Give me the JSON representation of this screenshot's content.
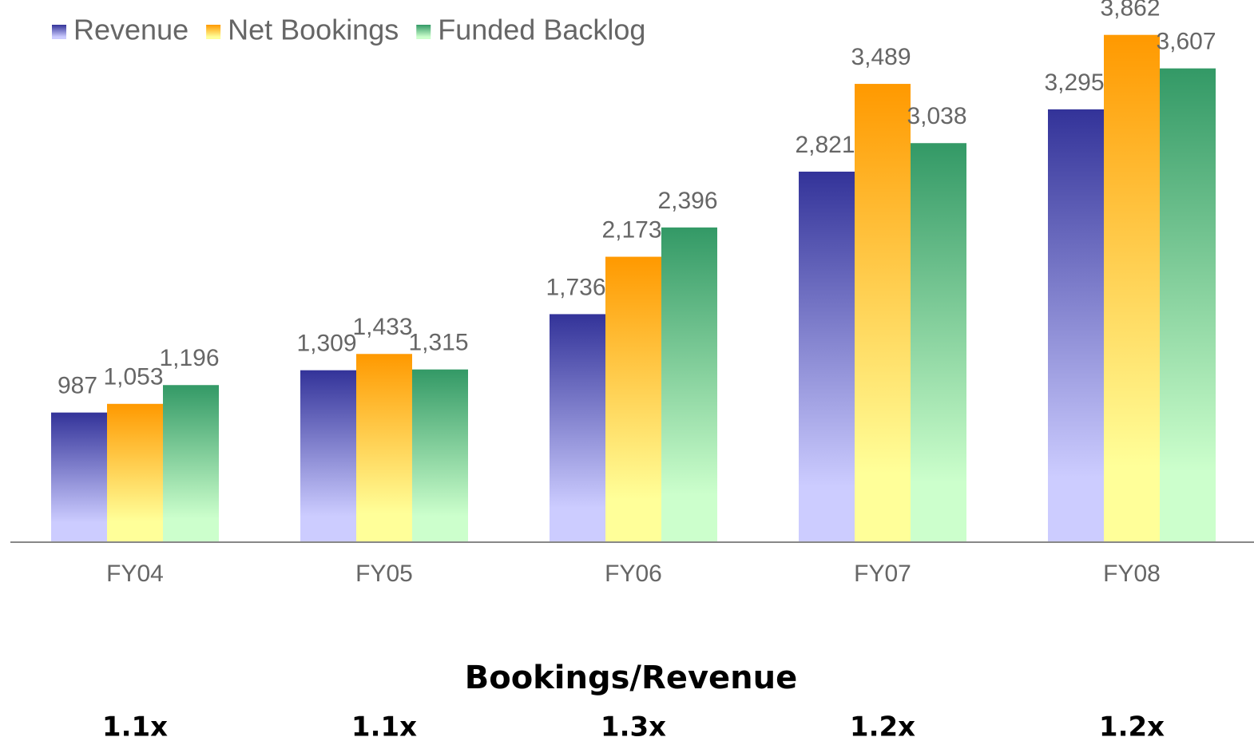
{
  "chart_data": {
    "type": "bar",
    "categories": [
      "FY04",
      "FY05",
      "FY06",
      "FY07",
      "FY08"
    ],
    "series": [
      {
        "name": "Revenue",
        "color": "#333399",
        "light_color": "#ccccff",
        "values": [
          987,
          1309,
          1736,
          2821,
          3295
        ],
        "value_labels": [
          "987",
          "1,309",
          "1,736",
          "2,821",
          "3,295"
        ]
      },
      {
        "name": "Net Bookings",
        "color": "#ff9900",
        "light_color": "#ffff99",
        "values": [
          1053,
          1433,
          2173,
          3489,
          3862
        ],
        "value_labels": [
          "1,053",
          "1,433",
          "2,173",
          "3,489",
          "3,862"
        ]
      },
      {
        "name": "Funded Backlog",
        "color": "#339966",
        "light_color": "#ccffcc",
        "values": [
          1196,
          1315,
          2396,
          3038,
          3607
        ],
        "value_labels": [
          "1,196",
          "1,315",
          "2,396",
          "3,038",
          "3,607"
        ]
      }
    ],
    "ylim": [
      0,
      4000
    ],
    "legend": "top-left",
    "ratio_title": "Bookings/Revenue",
    "ratios": [
      "1.1x",
      "1.1x",
      "1.3x",
      "1.2x",
      "1.2x"
    ]
  }
}
